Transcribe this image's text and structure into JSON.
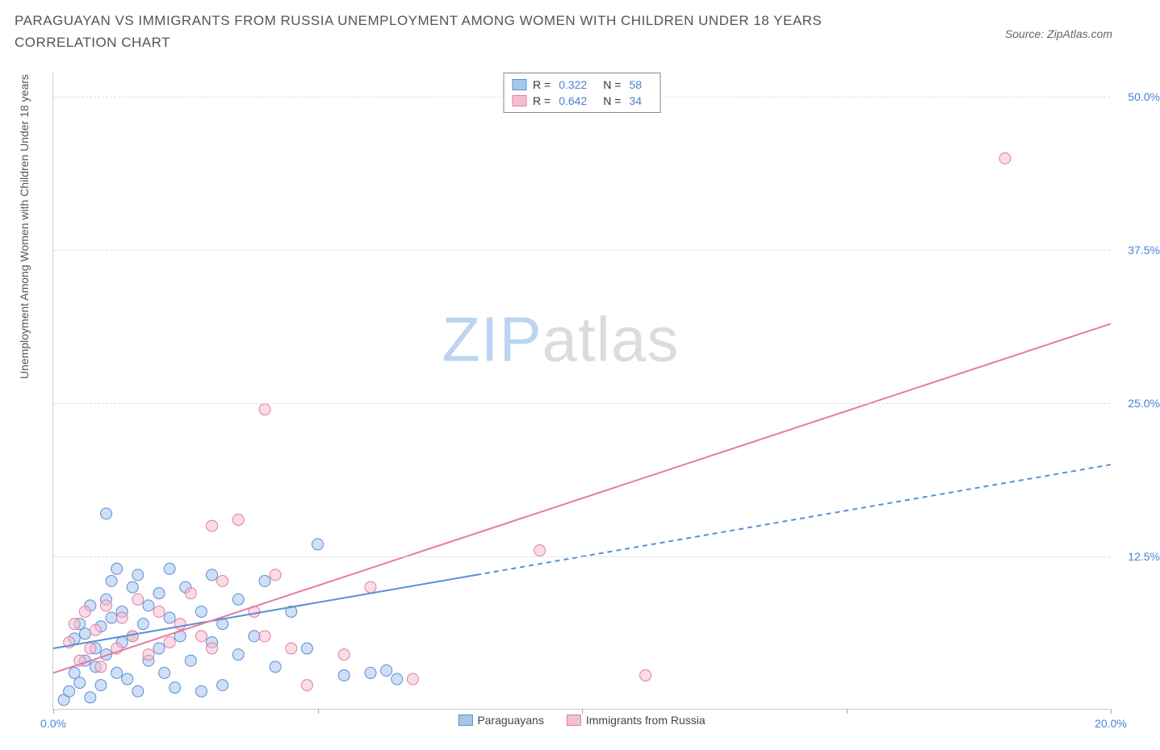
{
  "title": "PARAGUAYAN VS IMMIGRANTS FROM RUSSIA UNEMPLOYMENT AMONG WOMEN WITH CHILDREN UNDER 18 YEARS CORRELATION CHART",
  "source": "Source: ZipAtlas.com",
  "y_axis_title": "Unemployment Among Women with Children Under 18 years",
  "watermark_zip": "ZIP",
  "watermark_atlas": "atlas",
  "chart": {
    "type": "scatter-with-regression",
    "x_range": [
      0,
      20
    ],
    "y_range": [
      0,
      52
    ],
    "x_ticks": [
      0,
      5,
      10,
      15,
      20
    ],
    "x_tick_labels": [
      "0.0%",
      "",
      "",
      "",
      "20.0%"
    ],
    "y_ticks": [
      12.5,
      25.0,
      37.5,
      50.0
    ],
    "y_tick_labels": [
      "12.5%",
      "25.0%",
      "37.5%",
      "50.0%"
    ],
    "grid_color": "#dddddd",
    "background_color": "#ffffff",
    "axis_color": "#cccccc",
    "tick_label_color": "#4a7fd8",
    "marker_radius": 7,
    "marker_opacity": 0.55,
    "series": [
      {
        "name": "Paraguayans",
        "color_fill": "#a8c5ed",
        "color_stroke": "#5a8fd6",
        "R": "0.322",
        "N": "58",
        "line": {
          "x1": 0,
          "y1": 5.0,
          "x2_solid": 8.0,
          "y2_solid": 11.0,
          "x2_dash": 20,
          "y2_dash": 20.0,
          "width": 2
        },
        "points": [
          [
            0.2,
            0.8
          ],
          [
            0.3,
            1.5
          ],
          [
            0.4,
            3.0
          ],
          [
            0.4,
            5.8
          ],
          [
            0.5,
            2.2
          ],
          [
            0.5,
            7.0
          ],
          [
            0.6,
            4.0
          ],
          [
            0.6,
            6.2
          ],
          [
            0.7,
            1.0
          ],
          [
            0.7,
            8.5
          ],
          [
            0.8,
            3.5
          ],
          [
            0.8,
            5.0
          ],
          [
            0.9,
            2.0
          ],
          [
            0.9,
            6.8
          ],
          [
            1.0,
            4.5
          ],
          [
            1.0,
            9.0
          ],
          [
            1.1,
            7.5
          ],
          [
            1.1,
            10.5
          ],
          [
            1.2,
            11.5
          ],
          [
            1.2,
            3.0
          ],
          [
            1.3,
            5.5
          ],
          [
            1.3,
            8.0
          ],
          [
            1.4,
            2.5
          ],
          [
            1.5,
            6.0
          ],
          [
            1.5,
            10.0
          ],
          [
            1.6,
            1.5
          ],
          [
            1.6,
            11.0
          ],
          [
            1.7,
            7.0
          ],
          [
            1.8,
            4.0
          ],
          [
            1.8,
            8.5
          ],
          [
            1.0,
            16.0
          ],
          [
            2.0,
            5.0
          ],
          [
            2.0,
            9.5
          ],
          [
            2.1,
            3.0
          ],
          [
            2.2,
            7.5
          ],
          [
            2.2,
            11.5
          ],
          [
            2.3,
            1.8
          ],
          [
            2.4,
            6.0
          ],
          [
            2.5,
            10.0
          ],
          [
            2.6,
            4.0
          ],
          [
            2.8,
            8.0
          ],
          [
            2.8,
            1.5
          ],
          [
            3.0,
            5.5
          ],
          [
            3.0,
            11.0
          ],
          [
            3.2,
            7.0
          ],
          [
            3.2,
            2.0
          ],
          [
            3.5,
            9.0
          ],
          [
            3.5,
            4.5
          ],
          [
            3.8,
            6.0
          ],
          [
            4.0,
            10.5
          ],
          [
            4.2,
            3.5
          ],
          [
            4.5,
            8.0
          ],
          [
            4.8,
            5.0
          ],
          [
            5.0,
            13.5
          ],
          [
            5.5,
            2.8
          ],
          [
            6.0,
            3.0
          ],
          [
            6.3,
            3.2
          ],
          [
            6.5,
            2.5
          ]
        ]
      },
      {
        "name": "Immigrants from Russia",
        "color_fill": "#f4c0cf",
        "color_stroke": "#e67ba0",
        "R": "0.642",
        "N": "34",
        "line": {
          "x1": 0,
          "y1": 3.0,
          "x2_solid": 20,
          "y2_solid": 31.5,
          "x2_dash": 20,
          "y2_dash": 31.5,
          "width": 2
        },
        "points": [
          [
            0.3,
            5.5
          ],
          [
            0.4,
            7.0
          ],
          [
            0.5,
            4.0
          ],
          [
            0.6,
            8.0
          ],
          [
            0.7,
            5.0
          ],
          [
            0.8,
            6.5
          ],
          [
            0.9,
            3.5
          ],
          [
            1.0,
            8.5
          ],
          [
            1.2,
            5.0
          ],
          [
            1.3,
            7.5
          ],
          [
            1.5,
            6.0
          ],
          [
            1.6,
            9.0
          ],
          [
            1.8,
            4.5
          ],
          [
            2.0,
            8.0
          ],
          [
            2.2,
            5.5
          ],
          [
            2.4,
            7.0
          ],
          [
            2.6,
            9.5
          ],
          [
            2.8,
            6.0
          ],
          [
            3.0,
            5.0
          ],
          [
            3.2,
            10.5
          ],
          [
            3.0,
            15.0
          ],
          [
            3.5,
            15.5
          ],
          [
            3.8,
            8.0
          ],
          [
            4.0,
            6.0
          ],
          [
            4.2,
            11.0
          ],
          [
            4.5,
            5.0
          ],
          [
            4.0,
            24.5
          ],
          [
            4.8,
            2.0
          ],
          [
            5.5,
            4.5
          ],
          [
            6.0,
            10.0
          ],
          [
            6.8,
            2.5
          ],
          [
            9.2,
            13.0
          ],
          [
            11.2,
            2.8
          ],
          [
            18.0,
            45.0
          ]
        ]
      }
    ]
  },
  "legend_bottom": [
    {
      "label": "Paraguayans",
      "fill": "#a8c5ed",
      "stroke": "#5a8fd6"
    },
    {
      "label": "Immigrants from Russia",
      "fill": "#f4c0cf",
      "stroke": "#e67ba0"
    }
  ]
}
